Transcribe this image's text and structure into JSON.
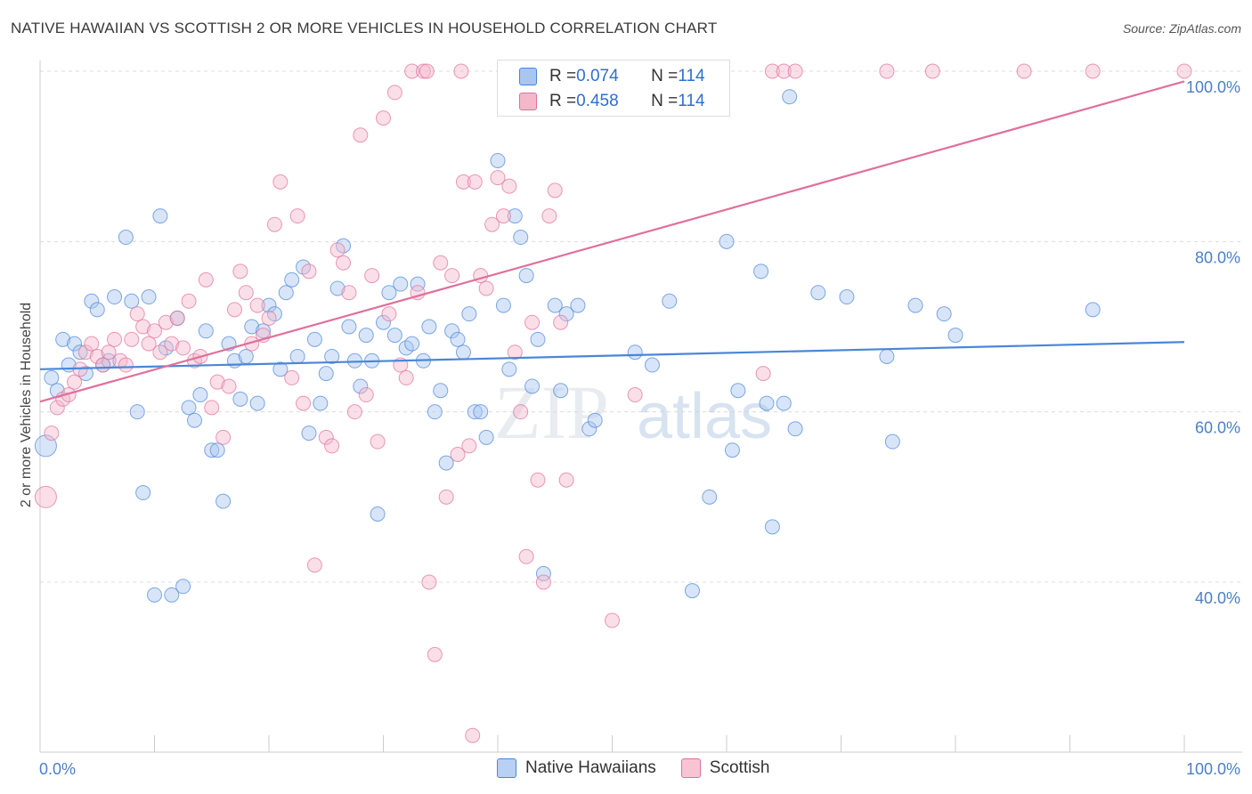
{
  "header": {
    "title": "NATIVE HAWAIIAN VS SCOTTISH 2 OR MORE VEHICLES IN HOUSEHOLD CORRELATION CHART",
    "source": "Source: ZipAtlas.com"
  },
  "watermark": {
    "zip": "ZIP",
    "atlas": "atlas"
  },
  "legend": {
    "rows": [
      {
        "r_label": "R = ",
        "r_value": "0.074",
        "n_label": "N = ",
        "n_value": "114",
        "color": "#a8c6f0"
      },
      {
        "r_label": "R = ",
        "r_value": "0.458",
        "n_label": "N = ",
        "n_value": "114",
        "color": "#f5b8cb"
      }
    ]
  },
  "bottom_legend": [
    {
      "label": "Native Hawaiians",
      "color": "#b8d0f4"
    },
    {
      "label": "Scottish",
      "color": "#f8c4d4"
    }
  ],
  "chart_data": {
    "type": "scatter",
    "ylabel": "2 or more Vehicles in Household",
    "xlim": [
      0,
      100
    ],
    "ylim": [
      20,
      100
    ],
    "x_tick_labels": [
      "0.0%",
      "100.0%"
    ],
    "y_ticks": [
      {
        "value": 40,
        "label": "40.0%"
      },
      {
        "value": 60,
        "label": "60.0%"
      },
      {
        "value": 80,
        "label": "80.0%"
      },
      {
        "value": 100,
        "label": "100.0%"
      }
    ],
    "grid": true,
    "series": [
      {
        "name": "Native Hawaiians",
        "color": "#4a86d8",
        "fill": "#a8c6f0",
        "trend": {
          "x": [
            0,
            100
          ],
          "y": [
            65.0,
            68.2
          ]
        },
        "points": [
          [
            0.5,
            56
          ],
          [
            1,
            64
          ],
          [
            1.5,
            62.5
          ],
          [
            2,
            68.5
          ],
          [
            2.5,
            65.5
          ],
          [
            3,
            68
          ],
          [
            3.5,
            67
          ],
          [
            4,
            64.5
          ],
          [
            4.5,
            73
          ],
          [
            5,
            72
          ],
          [
            5.5,
            65.5
          ],
          [
            6,
            66
          ],
          [
            6.5,
            73.5
          ],
          [
            7.5,
            80.5
          ],
          [
            8,
            73
          ],
          [
            8.5,
            60
          ],
          [
            9,
            50.5
          ],
          [
            9.5,
            73.5
          ],
          [
            10,
            38.5
          ],
          [
            10.5,
            83
          ],
          [
            11,
            67.5
          ],
          [
            11.5,
            38.5
          ],
          [
            12,
            71
          ],
          [
            12.5,
            39.5
          ],
          [
            13,
            60.5
          ],
          [
            13.5,
            59
          ],
          [
            14,
            62
          ],
          [
            14.5,
            69.5
          ],
          [
            15,
            55.5
          ],
          [
            15.5,
            55.5
          ],
          [
            16,
            49.5
          ],
          [
            16.5,
            68
          ],
          [
            17,
            66
          ],
          [
            17.5,
            61.5
          ],
          [
            18,
            66.5
          ],
          [
            18.5,
            70
          ],
          [
            19,
            61
          ],
          [
            19.5,
            69.5
          ],
          [
            20,
            72.5
          ],
          [
            20.5,
            71.5
          ],
          [
            21,
            65
          ],
          [
            21.5,
            74
          ],
          [
            22,
            75.5
          ],
          [
            22.5,
            66.5
          ],
          [
            23,
            77
          ],
          [
            23.5,
            57.5
          ],
          [
            24,
            68.5
          ],
          [
            24.5,
            61
          ],
          [
            25,
            64.5
          ],
          [
            25.5,
            66.5
          ],
          [
            26,
            74.5
          ],
          [
            26.5,
            79.5
          ],
          [
            27,
            70
          ],
          [
            27.5,
            66
          ],
          [
            28,
            63
          ],
          [
            28.5,
            69
          ],
          [
            29,
            66
          ],
          [
            29.5,
            48
          ],
          [
            30,
            70.5
          ],
          [
            30.5,
            74
          ],
          [
            31,
            69
          ],
          [
            31.5,
            75
          ],
          [
            32,
            67.5
          ],
          [
            32.5,
            68
          ],
          [
            33,
            75
          ],
          [
            33.5,
            66
          ],
          [
            34,
            70
          ],
          [
            34.5,
            60
          ],
          [
            35,
            62.5
          ],
          [
            35.5,
            54
          ],
          [
            36,
            69.5
          ],
          [
            36.5,
            68.5
          ],
          [
            37,
            67
          ],
          [
            37.5,
            71.5
          ],
          [
            38,
            60
          ],
          [
            38.5,
            60
          ],
          [
            39,
            57
          ],
          [
            40,
            89.5
          ],
          [
            40.5,
            72.5
          ],
          [
            41,
            65
          ],
          [
            41.5,
            83
          ],
          [
            42,
            80.5
          ],
          [
            42.5,
            76
          ],
          [
            43,
            63
          ],
          [
            43.5,
            68.5
          ],
          [
            44,
            41
          ],
          [
            45,
            72.5
          ],
          [
            45.5,
            62.5
          ],
          [
            46,
            71.5
          ],
          [
            47,
            72.5
          ],
          [
            48,
            58
          ],
          [
            48.5,
            59
          ],
          [
            52,
            67
          ],
          [
            53.5,
            65.5
          ],
          [
            55,
            73
          ],
          [
            57,
            39
          ],
          [
            60,
            80
          ],
          [
            60.5,
            55.5
          ],
          [
            61,
            62.5
          ],
          [
            63,
            76.5
          ],
          [
            63.5,
            61
          ],
          [
            64,
            46.5
          ],
          [
            65,
            61
          ],
          [
            65.5,
            97
          ],
          [
            66,
            58
          ],
          [
            68,
            74
          ],
          [
            70.5,
            73.5
          ],
          [
            74,
            66.5
          ],
          [
            74.5,
            56.5
          ],
          [
            76.5,
            72.5
          ],
          [
            79,
            71.5
          ],
          [
            80,
            69
          ],
          [
            92,
            72
          ],
          [
            58.5,
            50
          ]
        ]
      },
      {
        "name": "Scottish",
        "color": "#e0709a",
        "fill": "#f5b8cb",
        "trend": {
          "x": [
            0,
            100
          ],
          "y": [
            61.2,
            98.8
          ]
        },
        "points": [
          [
            0.5,
            50
          ],
          [
            1,
            57.5
          ],
          [
            1.5,
            60.5
          ],
          [
            2,
            61.5
          ],
          [
            2.5,
            62
          ],
          [
            3,
            63.5
          ],
          [
            3.5,
            65
          ],
          [
            4,
            67
          ],
          [
            4.5,
            68
          ],
          [
            5,
            66.5
          ],
          [
            5.5,
            65.5
          ],
          [
            6,
            67
          ],
          [
            6.5,
            68.5
          ],
          [
            7,
            66
          ],
          [
            7.5,
            65.5
          ],
          [
            8,
            68.5
          ],
          [
            8.5,
            71.5
          ],
          [
            9,
            70
          ],
          [
            9.5,
            68
          ],
          [
            10,
            69.5
          ],
          [
            10.5,
            67
          ],
          [
            11,
            70.5
          ],
          [
            11.5,
            68
          ],
          [
            12,
            71
          ],
          [
            12.5,
            67.5
          ],
          [
            13,
            73
          ],
          [
            13.5,
            66
          ],
          [
            14,
            66.5
          ],
          [
            14.5,
            75.5
          ],
          [
            15,
            60.5
          ],
          [
            15.5,
            63.5
          ],
          [
            16,
            57
          ],
          [
            16.5,
            63
          ],
          [
            17,
            72
          ],
          [
            17.5,
            76.5
          ],
          [
            18,
            74
          ],
          [
            18.5,
            68
          ],
          [
            19,
            72.5
          ],
          [
            19.5,
            69
          ],
          [
            20,
            71
          ],
          [
            20.5,
            82
          ],
          [
            21,
            87
          ],
          [
            22,
            64
          ],
          [
            22.5,
            83
          ],
          [
            23,
            61
          ],
          [
            23.5,
            76.5
          ],
          [
            24,
            42
          ],
          [
            25,
            57
          ],
          [
            25.5,
            56
          ],
          [
            26,
            79
          ],
          [
            26.5,
            77.5
          ],
          [
            27,
            74
          ],
          [
            27.5,
            60
          ],
          [
            28,
            92.5
          ],
          [
            28.5,
            62
          ],
          [
            29,
            76
          ],
          [
            29.5,
            56.5
          ],
          [
            30,
            94.5
          ],
          [
            30.5,
            71.5
          ],
          [
            31,
            97.5
          ],
          [
            31.5,
            65.5
          ],
          [
            32,
            64
          ],
          [
            32.5,
            100
          ],
          [
            33,
            74
          ],
          [
            33.5,
            100
          ],
          [
            34,
            40
          ],
          [
            34.5,
            31.5
          ],
          [
            35,
            77.5
          ],
          [
            35.5,
            50
          ],
          [
            36,
            76
          ],
          [
            36.5,
            55
          ],
          [
            37,
            87
          ],
          [
            37.5,
            56
          ],
          [
            38,
            87
          ],
          [
            38.5,
            76
          ],
          [
            39,
            74.5
          ],
          [
            39.5,
            82
          ],
          [
            40,
            87.5
          ],
          [
            40.5,
            83
          ],
          [
            41,
            86.5
          ],
          [
            41.5,
            67
          ],
          [
            42,
            60
          ],
          [
            42.5,
            43
          ],
          [
            43,
            70.5
          ],
          [
            43.5,
            52
          ],
          [
            44,
            40
          ],
          [
            44.5,
            83
          ],
          [
            45,
            86
          ],
          [
            45.5,
            70.5
          ],
          [
            46,
            52
          ],
          [
            46.5,
            100
          ],
          [
            47,
            96
          ],
          [
            48,
            100
          ],
          [
            49,
            100
          ],
          [
            50,
            35.5
          ],
          [
            52,
            62
          ],
          [
            55,
            100
          ],
          [
            59,
            100
          ],
          [
            64,
            100
          ],
          [
            65,
            100
          ],
          [
            66,
            100
          ],
          [
            74,
            100
          ],
          [
            78,
            100
          ],
          [
            86,
            100
          ],
          [
            92,
            100
          ],
          [
            100,
            100
          ],
          [
            33.8,
            100
          ],
          [
            37.8,
            22
          ],
          [
            36.8,
            100
          ],
          [
            47.5,
            100
          ],
          [
            52.8,
            100
          ],
          [
            58.3,
            100
          ],
          [
            63.2,
            64.5
          ],
          [
            44.8,
            100
          ]
        ]
      }
    ]
  }
}
